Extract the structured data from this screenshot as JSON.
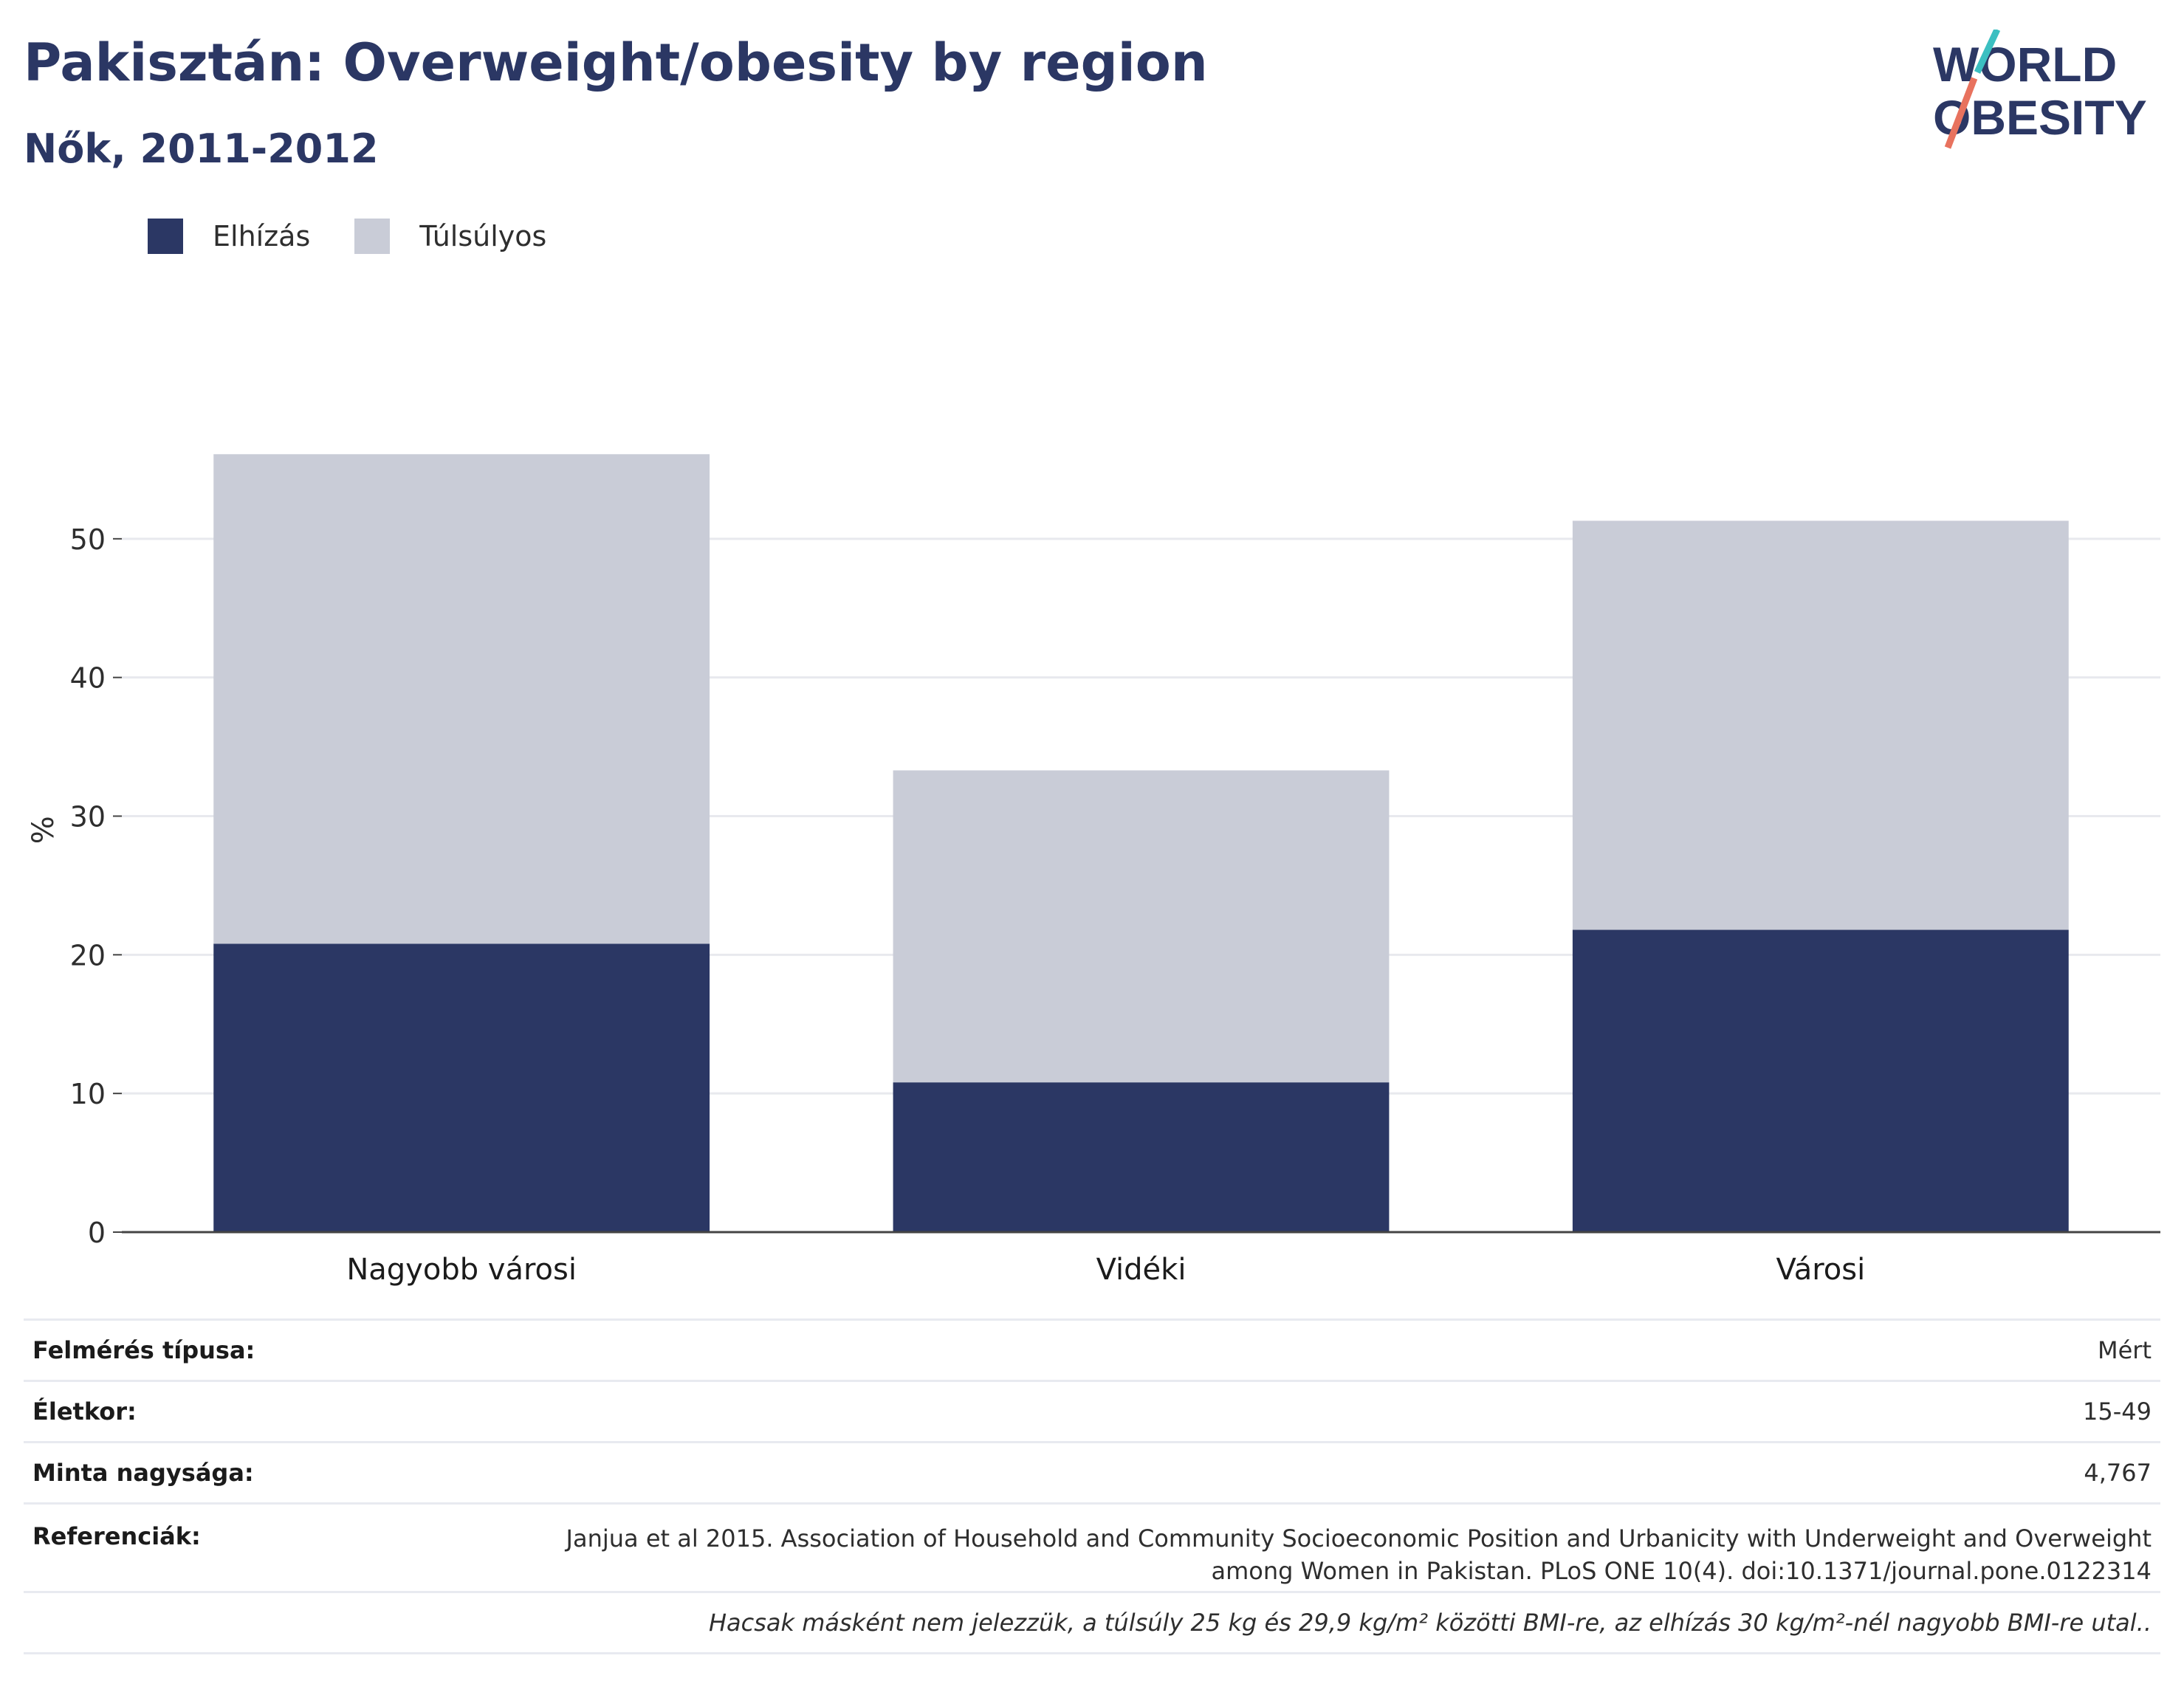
{
  "header": {
    "title": "Pakisztán: Overweight/obesity by region",
    "subtitle": "Nők, 2011-2012"
  },
  "logo": {
    "line1": "WORLD",
    "line2": "OBESITY"
  },
  "colors": {
    "obesity": "#2b3764",
    "overweight": "#c9ccd7",
    "title": "#2b3764",
    "logo_teal": "#3bbfc1",
    "logo_coral": "#e8725e",
    "grid": "#e8e9ee",
    "axis": "#444444"
  },
  "legend": [
    {
      "label": "Elhízás",
      "color": "#2b3764"
    },
    {
      "label": "Túlsúlyos",
      "color": "#c9ccd7"
    }
  ],
  "chart_data": {
    "type": "bar",
    "stacked": true,
    "categories": [
      "Nagyobb városi",
      "Vidéki",
      "Városi"
    ],
    "series": [
      {
        "name": "Elhízás",
        "values": [
          20.8,
          10.8,
          21.8
        ]
      },
      {
        "name": "Túlsúlyos",
        "values": [
          35.3,
          22.5,
          29.5
        ]
      }
    ],
    "ylabel": "%",
    "ylim": [
      0,
      60
    ],
    "yticks": [
      0,
      10,
      20,
      30,
      40,
      50
    ],
    "grid": true,
    "legend_position": "top-left"
  },
  "info": {
    "survey_type_label": "Felmérés típusa:",
    "survey_type_value": "Mért",
    "age_label": "Életkor:",
    "age_value": "15-49",
    "sample_label": "Minta nagysága:",
    "sample_value": "4,767",
    "refs_label": "Referenciák:",
    "refs_value": "Janjua et al 2015. Association of Household and Community Socioeconomic Position and Urbanicity with Underweight and Overweight among Women in Pakistan. PLoS ONE 10(4). doi:10.1371/journal.pone.0122314",
    "note": "Hacsak másként nem jelezzük, a túlsúly 25 kg és 29,9 kg/m² közötti BMI-re, az elhízás 30 kg/m²-nél nagyobb BMI-re utal.."
  }
}
